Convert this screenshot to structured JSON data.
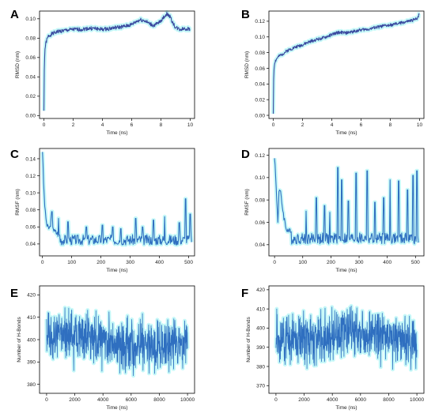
{
  "colors": {
    "line": "#2f6fc0",
    "line_dark": "#3a4aa0",
    "cyan_band": "#7ff0f0",
    "pink_band": "#f3c6f3",
    "axis": "#000000"
  },
  "chart_data": [
    {
      "panel": "A",
      "type": "line",
      "xlabel": "Time (ns)",
      "ylabel": "RMSD (nm)",
      "xlim": [
        -0.3,
        10.3
      ],
      "ylim": [
        -0.003,
        0.108
      ],
      "xticks": [
        0,
        2,
        4,
        6,
        8,
        10
      ],
      "yticks": [
        0.0,
        0.02,
        0.04,
        0.06,
        0.08,
        0.1
      ],
      "xtick_labels": [
        "0",
        "2",
        "4",
        "6",
        "8",
        "10"
      ],
      "ytick_labels": [
        "0.00",
        "0.02",
        "0.04",
        "0.06",
        "0.08",
        "0.10"
      ],
      "points": [
        [
          0,
          0.005
        ],
        [
          0.03,
          0.055
        ],
        [
          0.08,
          0.07
        ],
        [
          0.15,
          0.076
        ],
        [
          0.3,
          0.082
        ],
        [
          0.5,
          0.084
        ],
        [
          0.8,
          0.086
        ],
        [
          1,
          0.087
        ],
        [
          1.5,
          0.088
        ],
        [
          2,
          0.089
        ],
        [
          2.5,
          0.089
        ],
        [
          3,
          0.09
        ],
        [
          3.5,
          0.09
        ],
        [
          4,
          0.089
        ],
        [
          4.5,
          0.09
        ],
        [
          5,
          0.091
        ],
        [
          5.5,
          0.092
        ],
        [
          6,
          0.094
        ],
        [
          6.3,
          0.097
        ],
        [
          6.6,
          0.099
        ],
        [
          6.9,
          0.098
        ],
        [
          7.2,
          0.095
        ],
        [
          7.5,
          0.093
        ],
        [
          7.8,
          0.095
        ],
        [
          8.1,
          0.1
        ],
        [
          8.4,
          0.105
        ],
        [
          8.6,
          0.103
        ],
        [
          8.8,
          0.096
        ],
        [
          9,
          0.091
        ],
        [
          9.3,
          0.089
        ],
        [
          9.6,
          0.09
        ],
        [
          10,
          0.089
        ]
      ],
      "noise": 0.002,
      "seed": 1
    },
    {
      "panel": "B",
      "type": "line",
      "xlabel": "Time (ns)",
      "ylabel": "RMSD (nm)",
      "xlim": [
        -0.3,
        10.3
      ],
      "ylim": [
        -0.004,
        0.133
      ],
      "xticks": [
        0,
        2,
        4,
        6,
        8,
        10
      ],
      "yticks": [
        0.0,
        0.02,
        0.04,
        0.06,
        0.08,
        0.1,
        0.12
      ],
      "xtick_labels": [
        "0",
        "2",
        "4",
        "6",
        "8",
        "10"
      ],
      "ytick_labels": [
        "0.00",
        "0.02",
        "0.04",
        "0.06",
        "0.08",
        "0.10",
        "0.12"
      ],
      "points": [
        [
          0,
          0.002
        ],
        [
          0.03,
          0.055
        ],
        [
          0.1,
          0.068
        ],
        [
          0.3,
          0.074
        ],
        [
          0.6,
          0.078
        ],
        [
          1,
          0.083
        ],
        [
          1.5,
          0.087
        ],
        [
          2,
          0.09
        ],
        [
          2.5,
          0.094
        ],
        [
          3,
          0.097
        ],
        [
          3.5,
          0.099
        ],
        [
          4,
          0.103
        ],
        [
          4.5,
          0.106
        ],
        [
          5,
          0.105
        ],
        [
          5.5,
          0.107
        ],
        [
          6,
          0.109
        ],
        [
          6.5,
          0.11
        ],
        [
          7,
          0.112
        ],
        [
          7.5,
          0.114
        ],
        [
          8,
          0.115
        ],
        [
          8.5,
          0.117
        ],
        [
          9,
          0.119
        ],
        [
          9.5,
          0.121
        ],
        [
          9.8,
          0.123
        ],
        [
          10,
          0.13
        ]
      ],
      "noise": 0.002,
      "seed": 2
    },
    {
      "panel": "C",
      "type": "line",
      "xlabel": "Time (ns)",
      "ylabel": "RMSF (nm)",
      "xlim": [
        -10,
        520
      ],
      "ylim": [
        0.026,
        0.152
      ],
      "xticks": [
        0,
        100,
        200,
        300,
        400,
        500
      ],
      "yticks": [
        0.04,
        0.06,
        0.08,
        0.1,
        0.12,
        0.14
      ],
      "xtick_labels": [
        "0",
        "100",
        "200",
        "300",
        "400",
        "500"
      ],
      "ytick_labels": [
        "0.04",
        "0.06",
        "0.08",
        "0.10",
        "0.12",
        "0.14"
      ],
      "n": 260,
      "base": 0.043,
      "spread": 0.012,
      "anchors": [
        [
          0,
          0.15
        ],
        [
          3,
          0.12
        ],
        [
          6,
          0.095
        ],
        [
          10,
          0.075
        ],
        [
          16,
          0.06
        ],
        [
          25,
          0.058
        ],
        [
          30,
          0.07
        ],
        [
          40,
          0.055
        ],
        [
          60,
          0.05
        ]
      ],
      "spikes": [
        [
          33,
          0.078
        ],
        [
          55,
          0.07
        ],
        [
          88,
          0.066
        ],
        [
          150,
          0.06
        ],
        [
          205,
          0.062
        ],
        [
          240,
          0.06
        ],
        [
          268,
          0.058
        ],
        [
          318,
          0.07
        ],
        [
          342,
          0.06
        ],
        [
          380,
          0.068
        ],
        [
          418,
          0.072
        ],
        [
          468,
          0.065
        ],
        [
          490,
          0.093
        ],
        [
          505,
          0.075
        ]
      ],
      "seed": 3
    },
    {
      "panel": "D",
      "type": "line",
      "xlabel": "Time (ns)",
      "ylabel": "RMSF (nm)",
      "xlim": [
        -20,
        530
      ],
      "ylim": [
        0.03,
        0.126
      ],
      "xticks": [
        0,
        100,
        200,
        300,
        400,
        500
      ],
      "yticks": [
        0.04,
        0.06,
        0.08,
        0.1,
        0.12
      ],
      "xtick_labels": [
        "0",
        "100",
        "200",
        "300",
        "400",
        "500"
      ],
      "ytick_labels": [
        "0.04",
        "0.06",
        "0.08",
        "0.10",
        "0.12"
      ],
      "n": 260,
      "base": 0.044,
      "spread": 0.01,
      "anchors": [
        [
          0,
          0.12
        ],
        [
          4,
          0.1
        ],
        [
          8,
          0.08
        ],
        [
          12,
          0.06
        ],
        [
          16,
          0.09
        ],
        [
          22,
          0.085
        ],
        [
          30,
          0.07
        ],
        [
          40,
          0.055
        ],
        [
          60,
          0.05
        ]
      ],
      "spikes": [
        [
          112,
          0.07
        ],
        [
          148,
          0.082
        ],
        [
          178,
          0.075
        ],
        [
          196,
          0.069
        ],
        [
          224,
          0.109
        ],
        [
          238,
          0.098
        ],
        [
          262,
          0.079
        ],
        [
          290,
          0.104
        ],
        [
          328,
          0.106
        ],
        [
          356,
          0.078
        ],
        [
          388,
          0.082
        ],
        [
          410,
          0.098
        ],
        [
          440,
          0.097
        ],
        [
          472,
          0.089
        ],
        [
          492,
          0.102
        ],
        [
          505,
          0.106
        ]
      ],
      "seed": 4
    },
    {
      "panel": "E",
      "type": "line",
      "xlabel": "Time (ns)",
      "ylabel": "Number of H-Bonds",
      "xlim": [
        -500,
        10500
      ],
      "ylim": [
        376,
        424
      ],
      "xticks": [
        0,
        2000,
        4000,
        6000,
        8000,
        10000
      ],
      "yticks": [
        380,
        390,
        400,
        410,
        420
      ],
      "xtick_labels": [
        "0",
        "2000",
        "4000",
        "6000",
        "8000",
        "10000"
      ],
      "ytick_labels": [
        "380",
        "390",
        "400",
        "410",
        "420"
      ],
      "n": 700,
      "center": 400,
      "amp": 8,
      "trend": [
        [
          0,
          401
        ],
        [
          2500,
          402
        ],
        [
          5000,
          398
        ],
        [
          7500,
          397
        ],
        [
          10000,
          398
        ]
      ],
      "seed": 5
    },
    {
      "panel": "F",
      "type": "line",
      "xlabel": "Time (ns)",
      "ylabel": "Number of H-Bonds",
      "xlim": [
        -500,
        10500
      ],
      "ylim": [
        366,
        422
      ],
      "xticks": [
        0,
        2000,
        4000,
        6000,
        8000,
        10000
      ],
      "yticks": [
        370,
        380,
        390,
        400,
        410,
        420
      ],
      "xtick_labels": [
        "0",
        "2000",
        "4000",
        "6000",
        "8000",
        "10000"
      ],
      "ytick_labels": [
        "370",
        "380",
        "390",
        "400",
        "410",
        "420"
      ],
      "n": 700,
      "center": 396,
      "amp": 9,
      "trend": [
        [
          0,
          395
        ],
        [
          2500,
          394
        ],
        [
          5000,
          399
        ],
        [
          7500,
          396
        ],
        [
          10000,
          393
        ]
      ],
      "seed": 6
    }
  ]
}
